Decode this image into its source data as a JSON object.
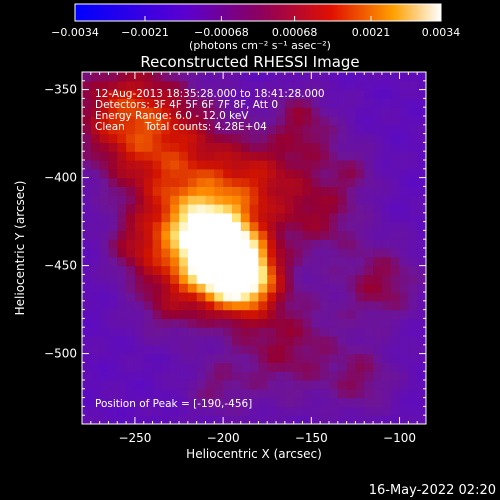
{
  "chart_data": {
    "type": "heatmap",
    "title": "Reconstructed RHESSI Image",
    "xlabel": "Heliocentric X (arcsec)",
    "ylabel": "Heliocentric Y (arcsec)",
    "xlim": [
      -280,
      -85
    ],
    "ylim": [
      -540,
      -340
    ],
    "x_ticks": [
      -250,
      -200,
      -150,
      -100
    ],
    "x_tick_labels": [
      "−250",
      "−200",
      "−150",
      "−100"
    ],
    "y_ticks": [
      -350,
      -400,
      -450,
      -500
    ],
    "y_tick_labels": [
      "−350",
      "−400",
      "−450",
      "−500"
    ],
    "colorbar": {
      "range": [
        -0.0034,
        0.0034
      ],
      "ticks": [
        -0.0034,
        -0.0021,
        -0.00068,
        0.00068,
        0.0021,
        0.0034
      ],
      "tick_labels": [
        "−0.0034",
        "−0.0021",
        "−0.00068",
        "0.00068",
        "0.0021",
        "0.0034"
      ],
      "units": "(photons cm⁻² s⁻¹ asec⁻²)",
      "colors": [
        "#0000ff",
        "#6a00c8",
        "#d00000",
        "#ff9000",
        "#ffffff"
      ]
    },
    "peak": [
      -190,
      -456
    ],
    "annotations": [
      "12-Aug-2013 18:35:28.000 to 18:41:28.000",
      "Detectors: 3F 4F 5F 6F 7F 8F, Att 0",
      "Energy Range: 6.0 - 12.0 keV",
      "Clean      Total counts: 4.28E+04"
    ],
    "peak_label": "Position of Peak = [-190,-456]",
    "grid": false
  },
  "footer": {
    "timestamp": "16-May-2022 02:20"
  }
}
